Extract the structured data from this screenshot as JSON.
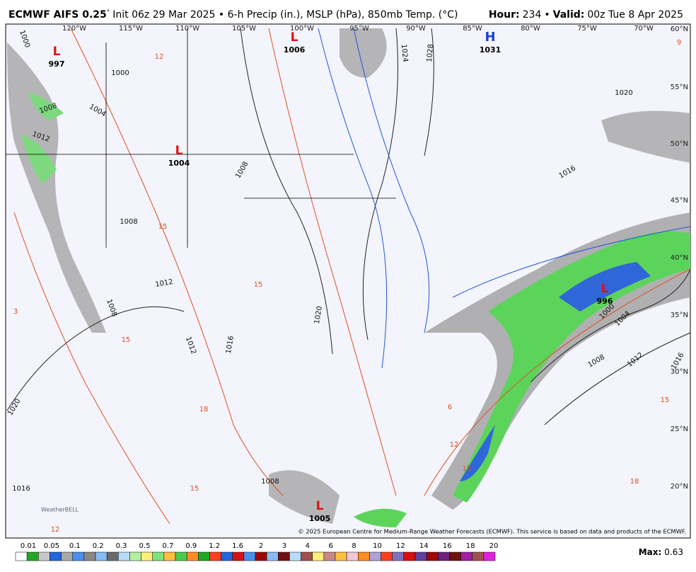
{
  "header": {
    "model": "ECMWF AIFS 0.25",
    "degree": "°",
    "info": "Init 06z 29 Mar 2025 • 6-h Precip (in.), MSLP (hPa), 850mb Temp. (°C)",
    "hour_label": "Hour:",
    "hour": "234",
    "sep": "•",
    "valid_label": "Valid:",
    "valid": "00z Tue 8 Apr 2025"
  },
  "longitudes": [
    "120°W",
    "115°W",
    "110°W",
    "105°W",
    "100°W",
    "95°W",
    "90°W",
    "85°W",
    "80°W",
    "75°W",
    "70°W"
  ],
  "latitudes": [
    "60°N",
    "55°N",
    "50°N",
    "45°N",
    "40°N",
    "35°N",
    "30°N",
    "25°N",
    "20°N"
  ],
  "centers": [
    {
      "letter": "L",
      "value": "997"
    },
    {
      "letter": "L",
      "value": "1006"
    },
    {
      "letter": "H",
      "value": "1031"
    },
    {
      "letter": "L",
      "value": "1004"
    },
    {
      "letter": "L",
      "value": "996"
    },
    {
      "letter": "L",
      "value": "1005"
    }
  ],
  "isobar_labels": [
    "1000",
    "1004",
    "1008",
    "1012",
    "1008",
    "1012",
    "1008",
    "1012",
    "1016",
    "1008",
    "1020",
    "1024",
    "1028",
    "1020",
    "1016",
    "1000",
    "1004",
    "1008",
    "1012",
    "1016",
    "1020",
    "1016",
    "1008",
    "1000"
  ],
  "temperature_labels": [
    "12",
    "15",
    "15",
    "18",
    "3",
    "15",
    "15",
    "6",
    "12",
    "15",
    "18",
    "15",
    "12",
    "9"
  ],
  "copyright": "© 2025 European Centre for Medium-Range Weather Forecasts (ECMWF). This service is based on data and products of the ECMWF.",
  "logo": "WeatherBELL",
  "colorbar": [
    "0.01",
    "0.05",
    "0.1",
    "0.2",
    "0.3",
    "0.5",
    "0.7",
    "0.9",
    "1.2",
    "1.6",
    "2",
    "3",
    "4",
    "6",
    "8",
    "10",
    "12",
    "14",
    "16",
    "18",
    "20"
  ],
  "max_label": "Max:",
  "max_value": "0.63"
}
